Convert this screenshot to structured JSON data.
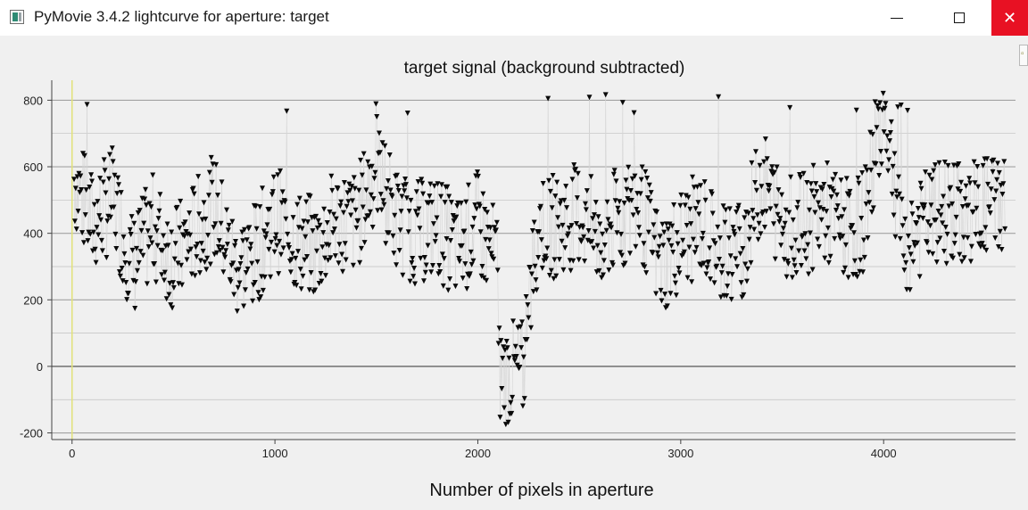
{
  "window": {
    "title": "PyMovie 3.4.2 lightcurve for aperture: target",
    "close_glyph": "✕"
  },
  "icons": {
    "app": "pymovie-app-icon",
    "minimize": "minimize-icon",
    "maximize": "maximize-icon",
    "close": "close-icon"
  },
  "colors": {
    "close_button": "#e81123",
    "marker": "#0a0a0a",
    "connector": "#d4d4d4",
    "cursor_line": "#e2e27a",
    "grid": "#9a9a9a"
  },
  "chart_data": {
    "type": "scatter",
    "title": "target signal (background subtracted)",
    "xlabel": "Number of pixels in aperture",
    "ylabel": "",
    "xlim": [
      -100,
      4650
    ],
    "ylim": [
      -220,
      860
    ],
    "x_ticks": [
      0,
      1000,
      2000,
      3000,
      4000
    ],
    "y_ticks": [
      -200,
      0,
      200,
      400,
      600,
      800
    ],
    "grid": "horizontal",
    "marker": "triangle-down",
    "points_connected": true,
    "vertical_marker_x": 0,
    "series": [
      {
        "values_summary": "approx 2000 frames; noisy signal mostly 150–820, centered near 420",
        "dip": {
          "x_start": 2100,
          "x_end": 2230,
          "min": -180,
          "max": 140
        },
        "x": [
          0,
          100,
          200,
          300,
          400,
          500,
          600,
          700,
          800,
          900,
          1000,
          1100,
          1200,
          1300,
          1400,
          1500,
          1600,
          1700,
          1800,
          1900,
          2000,
          2100,
          2150,
          2200,
          2300,
          2400,
          2500,
          2600,
          2700,
          2800,
          2900,
          3000,
          3100,
          3200,
          3300,
          3400,
          3500,
          3600,
          3700,
          3800,
          3900,
          4000,
          4100,
          4200,
          4300,
          4400,
          4500,
          4600
        ],
        "y": [
          580,
          430,
          500,
          300,
          420,
          320,
          400,
          480,
          300,
          330,
          450,
          380,
          350,
          440,
          430,
          600,
          440,
          400,
          420,
          350,
          430,
          300,
          -170,
          -90,
          430,
          420,
          460,
          380,
          450,
          480,
          300,
          380,
          430,
          340,
          350,
          560,
          430,
          420,
          470,
          410,
          430,
          800,
          360,
          430,
          470,
          450,
          480,
          500
        ]
      }
    ]
  }
}
